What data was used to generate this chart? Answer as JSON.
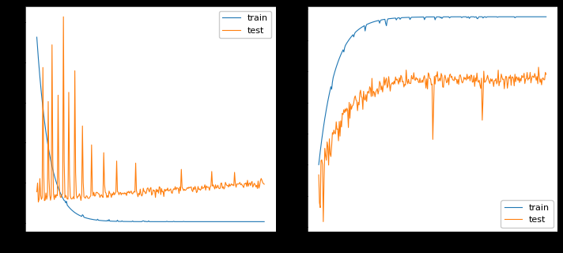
{
  "fig_width": 7.12,
  "fig_height": 3.2,
  "dpi": 100,
  "background_color": "#000000",
  "subplot_bg": "#ffffff",
  "train_color": "#1f77b4",
  "test_color": "#ff7f0e",
  "legend_labels": [
    "train",
    "test"
  ],
  "n_points": 300
}
